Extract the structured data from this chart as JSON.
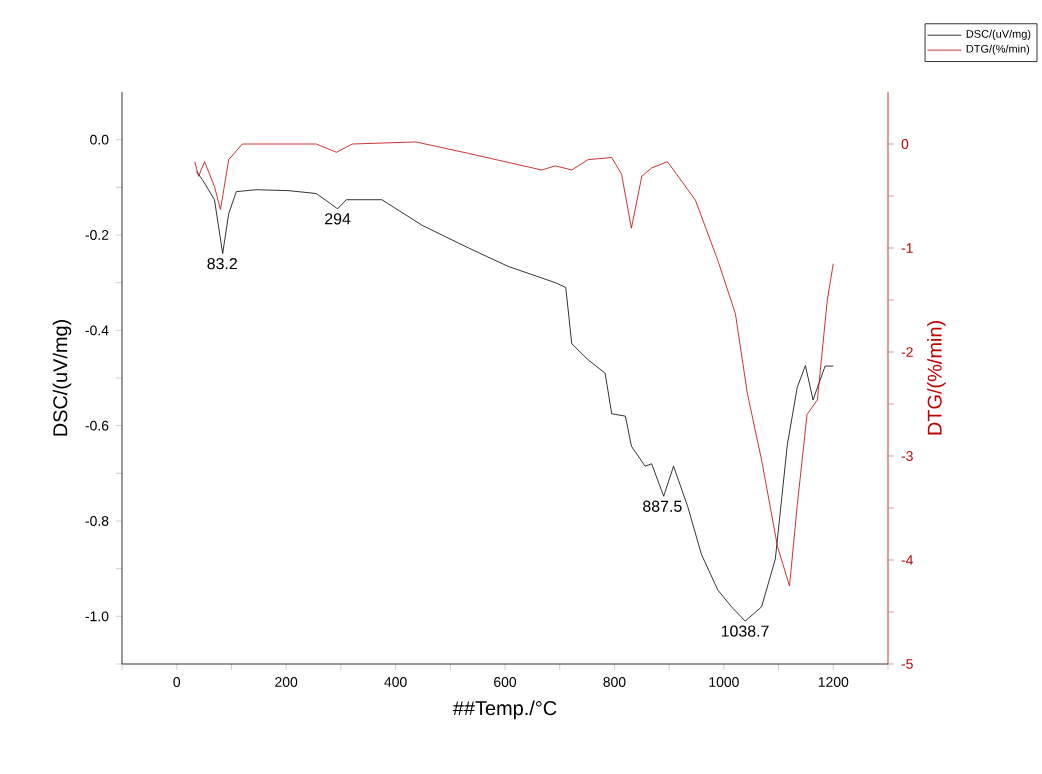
{
  "chart_data": {
    "type": "line",
    "xlabel": "##Temp./°C",
    "ylabel": "DSC/(uV/mg)",
    "y2label": "DTG/(%/min)",
    "xlim": [
      -100,
      1300
    ],
    "ylim": [
      -1.1,
      0.1
    ],
    "y2lim": [
      -5,
      0.5
    ],
    "xticks": [
      {
        "value": -100,
        "label": null
      },
      0,
      {
        "value": 100,
        "label": null
      },
      200,
      {
        "value": 300,
        "label": null
      },
      400,
      {
        "value": 500,
        "label": null
      },
      600,
      {
        "value": 700,
        "label": null
      },
      800,
      {
        "value": 900,
        "label": null
      },
      1000,
      {
        "value": 1100,
        "label": null
      },
      1200,
      {
        "value": 1300,
        "label": null
      }
    ],
    "yticks": [
      {
        "value": -1.1,
        "label": null
      },
      {
        "value": -1.0,
        "label": "-1.0"
      },
      {
        "value": -0.9,
        "label": null
      },
      {
        "value": -0.8,
        "label": "-0.8"
      },
      {
        "value": -0.7,
        "label": null
      },
      {
        "value": -0.6,
        "label": "-0.6"
      },
      {
        "value": -0.5,
        "label": null
      },
      {
        "value": -0.4,
        "label": "-0.4"
      },
      {
        "value": -0.3,
        "label": null
      },
      {
        "value": -0.2,
        "label": "-0.2"
      },
      {
        "value": -0.1,
        "label": null
      },
      {
        "value": 0,
        "label": "0.0"
      }
    ],
    "y2ticks": [
      -5,
      {
        "value": -4.5,
        "label": null
      },
      -4,
      {
        "value": -3.5,
        "label": null
      },
      -3,
      {
        "value": -2.5,
        "label": null
      },
      -2,
      {
        "value": -1.5,
        "label": null
      },
      -1,
      {
        "value": -0.5,
        "label": null
      },
      0
    ],
    "legend": "top right",
    "marker": "none",
    "line_style": "solid",
    "series": [
      {
        "name": "DSC/(uV/mg)",
        "color": "#000000",
        "x": [
          36,
          47,
          69,
          84,
          95,
          109,
          146,
          205,
          255,
          294,
          310,
          375,
          449,
          533,
          606,
          692,
          711,
          722,
          752,
          783,
          795,
          820,
          831,
          856,
          868,
          890,
          908,
          934,
          959,
          989,
          1014,
          1039,
          1069,
          1094,
          1116,
          1134,
          1149,
          1163,
          1185,
          1200
        ],
        "values": [
          -0.067,
          -0.084,
          -0.126,
          -0.239,
          -0.155,
          -0.109,
          -0.105,
          -0.107,
          -0.113,
          -0.145,
          -0.126,
          -0.126,
          -0.18,
          -0.227,
          -0.266,
          -0.3,
          -0.31,
          -0.428,
          -0.462,
          -0.49,
          -0.575,
          -0.58,
          -0.643,
          -0.685,
          -0.68,
          -0.748,
          -0.685,
          -0.77,
          -0.87,
          -0.945,
          -0.98,
          -1.01,
          -0.98,
          -0.88,
          -0.64,
          -0.52,
          -0.474,
          -0.546,
          -0.475,
          -0.475
        ]
      },
      {
        "name": "DTG/(%/min)",
        "color": "#c00000",
        "axis": "y2",
        "x": [
          33,
          40,
          51,
          69,
          80,
          95,
          120,
          255,
          292,
          321,
          437,
          533,
          667,
          692,
          722,
          752,
          795,
          813,
          831,
          850,
          868,
          897,
          948,
          989,
          1021,
          1043,
          1069,
          1098,
          1120,
          1134,
          1152,
          1171,
          1189,
          1200
        ],
        "values": [
          -0.17,
          -0.31,
          -0.17,
          -0.41,
          -0.63,
          -0.15,
          0,
          0,
          -0.08,
          0,
          0.02,
          -0.09,
          -0.25,
          -0.21,
          -0.25,
          -0.15,
          -0.13,
          -0.29,
          -0.81,
          -0.31,
          -0.23,
          -0.17,
          -0.54,
          -1.12,
          -1.63,
          -2.4,
          -3.04,
          -3.87,
          -4.25,
          -3.48,
          -2.6,
          -2.46,
          -1.5,
          -1.15
        ]
      }
    ],
    "annotations": [
      {
        "text": "83.2",
        "x": 83.2,
        "y": -0.239
      },
      {
        "text": "294",
        "x": 294,
        "y": -0.145
      },
      {
        "text": "887.5",
        "x": 887.5,
        "y": -0.748
      },
      {
        "text": "1038.7",
        "x": 1038.7,
        "y": -1.01
      }
    ]
  }
}
